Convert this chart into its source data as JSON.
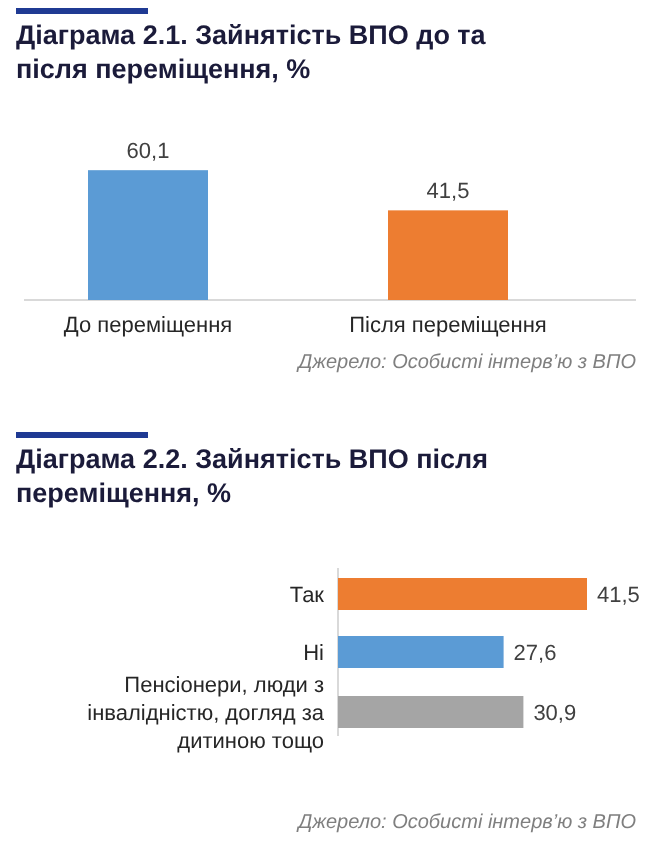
{
  "chart_data": [
    {
      "type": "bar",
      "title": "Діаграма 2.1. Зайнятість ВПО до та після переміщення, %",
      "categories": [
        "До переміщення",
        "Після переміщення"
      ],
      "values": [
        60.1,
        41.5
      ],
      "colors": [
        "#5b9bd5",
        "#ed7d31"
      ],
      "value_labels": [
        "60,1",
        "41,5"
      ],
      "annotations": [
        "Джерело: Особисті інтерв’ю з ВПО"
      ]
    },
    {
      "type": "bar",
      "orientation": "horizontal",
      "title": "Діаграма 2.2. Зайнятість ВПО після переміщення, %",
      "categories": [
        "Так",
        "Ні",
        "Пенсіонери, люди з інвалідністю, догляд за дитиною тощо"
      ],
      "values": [
        41.5,
        27.6,
        30.9
      ],
      "colors": [
        "#ed7d31",
        "#5b9bd5",
        "#a5a5a5"
      ],
      "value_labels": [
        "41,5",
        "27,6",
        "30,9"
      ],
      "annotations": [
        "Джерело: Особисті інтерв’ю з ВПО"
      ]
    }
  ]
}
